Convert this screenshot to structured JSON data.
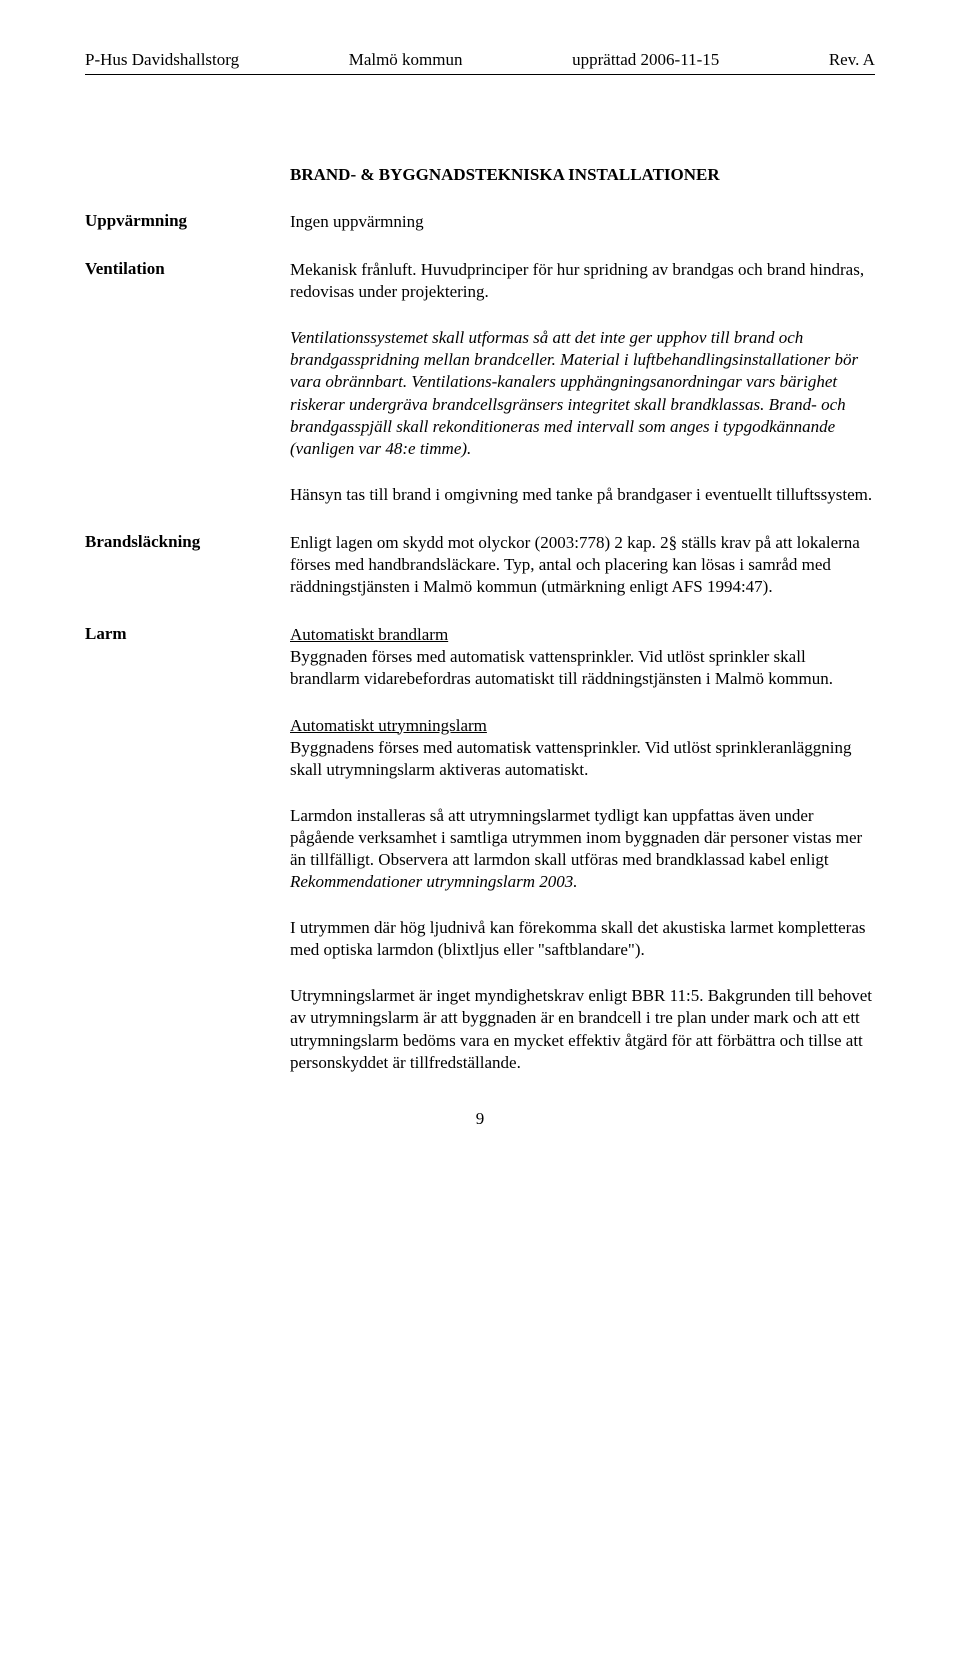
{
  "header": {
    "left": "P-Hus Davidshallstorg",
    "center": "Malmö kommun",
    "right1": "upprättad 2006-11-15",
    "right2": "Rev. A"
  },
  "sectionTitle": "BRAND- & BYGGNADSTEKNISKA INSTALLATIONER",
  "uppvarmning": {
    "label": "Uppvärmning",
    "text": "Ingen uppvärmning"
  },
  "ventilation": {
    "label": "Ventilation",
    "p1": "Mekanisk frånluft. Huvudprinciper för hur spridning av brandgas och brand hindras, redovisas under projektering.",
    "p2": "Ventilationssystemet skall utformas så att det inte ger upphov till brand och brandgasspridning mellan brandceller. Material i luftbehandlingsinstallationer bör vara obrännbart. Ventilations-kanalers upphängningsanordningar vars bärighet riskerar undergräva brandcellsgränsers integritet skall brandklassas. Brand- och brandgasspjäll skall rekonditioneras med intervall som anges i typgodkännande (vanligen var 48:e timme).",
    "p3": "Hänsyn tas till brand i omgivning med tanke på brandgaser i eventuellt tilluftssystem."
  },
  "brandslackning": {
    "label": "Brandsläckning",
    "p1": "Enligt lagen om skydd mot olyckor (2003:778) 2 kap. 2§ ställs krav på att lokalerna förses med handbrandsläckare. Typ, antal och placering kan lösas i samråd med räddningstjänsten i Malmö kommun (utmärkning enligt AFS 1994:47)."
  },
  "larm": {
    "label": "Larm",
    "h1": "Automatiskt brandlarm",
    "p1": "Byggnaden förses med automatisk vattensprinkler. Vid utlöst sprinkler skall brandlarm vidarebefordras automatiskt till räddningstjänsten i Malmö kommun.",
    "h2": "Automatiskt utrymningslarm",
    "p2": "Byggnadens förses med automatisk vattensprinkler. Vid utlöst sprinkleranläggning skall utrymningslarm aktiveras automatiskt.",
    "p3a": "Larmdon installeras så att utrymningslarmet tydligt kan uppfattas även under pågående verksamhet i samtliga utrymmen inom byggnaden där personer vistas mer än tillfälligt. Observera att larmdon skall utföras med brandklassad kabel enligt ",
    "p3b": "Rekommendationer utrymningslarm 2003.",
    "p4": "I utrymmen där hög ljudnivå kan förekomma skall det akustiska larmet kompletteras med optiska larmdon (blixtljus eller \"saftblandare\").",
    "p5": "Utrymningslarmet är inget myndighetskrav enligt BBR 11:5. Bakgrunden till behovet av utrymningslarm är att byggnaden är en brandcell i tre plan under mark och att ett utrymningslarm bedöms vara en mycket effektiv åtgärd för att förbättra och tillse att personskyddet är tillfredställande."
  },
  "pageNumber": "9"
}
